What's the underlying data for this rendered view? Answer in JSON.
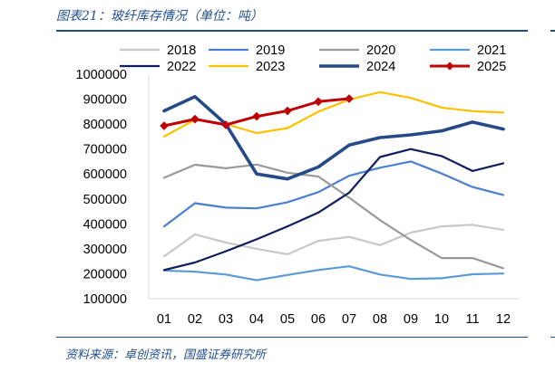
{
  "figure": {
    "title": "图表21：玻纤库存情况（单位：吨）",
    "source": "资料来源：卓创资讯，国盛证券研究所"
  },
  "chart_data": {
    "type": "line",
    "title": "",
    "xlabel": "",
    "ylabel": "",
    "categories": [
      "01",
      "02",
      "03",
      "04",
      "05",
      "06",
      "07",
      "08",
      "09",
      "10",
      "11",
      "12"
    ],
    "yticks": [
      "1000000",
      "900000",
      "800000",
      "700000",
      "600000",
      "500000",
      "400000",
      "300000",
      "200000",
      "100000"
    ],
    "ylim": [
      100000,
      1000000
    ],
    "grid": false,
    "legend_position": "top",
    "series": [
      {
        "name": "2018",
        "color": "#c8c8c8",
        "width": 2.2,
        "marker": "none",
        "values": [
          270000,
          358000,
          325000,
          300000,
          278000,
          332000,
          348000,
          315000,
          365000,
          390000,
          396000,
          376000
        ]
      },
      {
        "name": "2019",
        "color": "#4a7fd0",
        "width": 2.2,
        "marker": "none",
        "values": [
          390000,
          483000,
          465000,
          462000,
          487000,
          527000,
          593000,
          625000,
          650000,
          602000,
          548000,
          516000
        ]
      },
      {
        "name": "2020",
        "color": "#999999",
        "width": 2.2,
        "marker": "none",
        "values": [
          585000,
          637000,
          623000,
          638000,
          605000,
          590000,
          505000,
          415000,
          335000,
          263000,
          263000,
          222000
        ]
      },
      {
        "name": "2021",
        "color": "#5b9bd5",
        "width": 2.2,
        "marker": "none",
        "values": [
          213000,
          208000,
          197000,
          174000,
          195000,
          215000,
          230000,
          197000,
          179000,
          182000,
          198000,
          201000
        ]
      },
      {
        "name": "2022",
        "color": "#0d1f5c",
        "width": 2.2,
        "marker": "none",
        "values": [
          215000,
          245000,
          290000,
          338000,
          390000,
          445000,
          525000,
          668000,
          700000,
          672000,
          612000,
          643000
        ]
      },
      {
        "name": "2023",
        "color": "#ffc000",
        "width": 2.2,
        "marker": "none",
        "values": [
          750000,
          818000,
          800000,
          764000,
          784000,
          850000,
          898000,
          928000,
          905000,
          866000,
          852000,
          846000
        ]
      },
      {
        "name": "2024",
        "color": "#254a87",
        "width": 3.6,
        "marker": "none",
        "values": [
          853000,
          910000,
          800000,
          600000,
          580000,
          628000,
          716000,
          746000,
          757000,
          773000,
          808000,
          780000
        ]
      },
      {
        "name": "2025",
        "color": "#c00000",
        "width": 3.0,
        "marker": "diamond",
        "values": [
          793000,
          820000,
          797000,
          831000,
          853000,
          890000,
          902000,
          null,
          null,
          null,
          null,
          null
        ]
      }
    ]
  }
}
